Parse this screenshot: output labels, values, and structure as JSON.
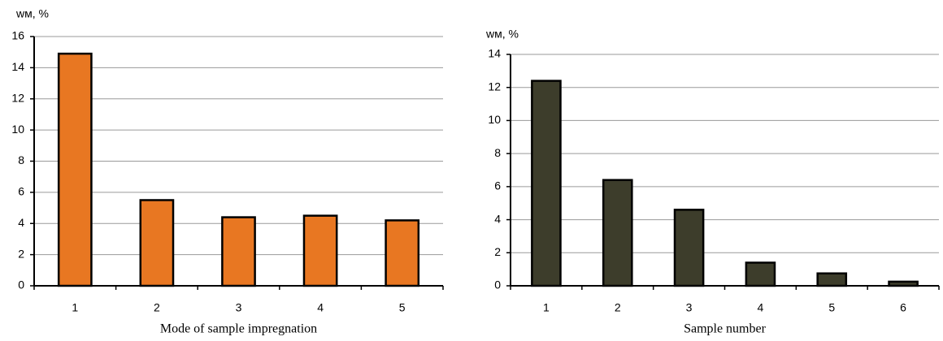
{
  "chart_data": [
    {
      "type": "bar",
      "y_label": "wм, %",
      "x_label": "Mode of sample impregnation",
      "categories": [
        "1",
        "2",
        "3",
        "4",
        "5"
      ],
      "values": [
        14.9,
        5.5,
        4.4,
        4.5,
        4.2
      ],
      "color": "#e87722",
      "ylim": [
        0,
        16
      ],
      "yticks": [
        0,
        2,
        4,
        6,
        8,
        10,
        12,
        14,
        16
      ],
      "grid": true
    },
    {
      "type": "bar",
      "y_label": "wм, %",
      "x_label": "Sample number",
      "categories": [
        "1",
        "2",
        "3",
        "4",
        "5",
        "6"
      ],
      "values": [
        12.4,
        6.4,
        4.6,
        1.4,
        0.75,
        0.25
      ],
      "color": "#3d3d2b",
      "ylim": [
        0,
        14
      ],
      "yticks": [
        0,
        2,
        4,
        6,
        8,
        10,
        12,
        14
      ],
      "grid": true
    }
  ]
}
